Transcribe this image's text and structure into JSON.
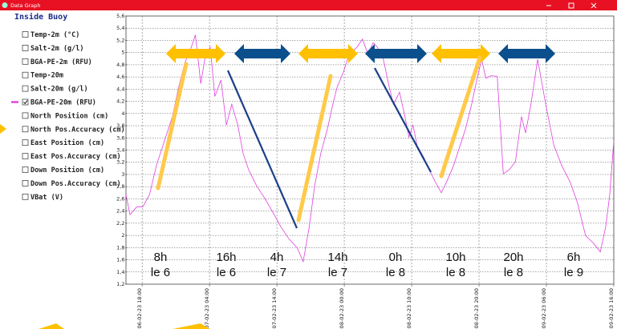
{
  "window": {
    "title": "Data Graph"
  },
  "sidebar": {
    "title": "Inside Buoy",
    "items": [
      {
        "label": "Temp-2m (°C)",
        "checked": false
      },
      {
        "label": "Salt-2m (g/l)",
        "checked": false
      },
      {
        "label": "BGA-PE-2m (RFU)",
        "checked": false
      },
      {
        "label": "Temp-20m",
        "checked": false
      },
      {
        "label": "Salt-20m (g/l)",
        "checked": false
      },
      {
        "label": "BGA-PE-20m (RFU)",
        "checked": true
      },
      {
        "label": "North Position (cm)",
        "checked": false
      },
      {
        "label": "North Pos.Accuracy (cm)",
        "checked": false
      },
      {
        "label": "East Position (cm)",
        "checked": false
      },
      {
        "label": "East Pos.Accuracy (cm)",
        "checked": false
      },
      {
        "label": "Down Position (cm)",
        "checked": false
      },
      {
        "label": "Down Pos.Accuracy (cm)",
        "checked": false
      },
      {
        "label": "VBat (V)",
        "checked": false
      }
    ]
  },
  "chart_data": {
    "type": "line",
    "grid": true,
    "xlim": [
      -2.4,
      70
    ],
    "ylim": [
      1.2,
      5.6
    ],
    "xticks": [
      {
        "value": 0,
        "label": "06-02-23 18:00"
      },
      {
        "value": 10,
        "label": "07-02-23 04:00"
      },
      {
        "value": 20,
        "label": "07-02-23 14:00"
      },
      {
        "value": 30,
        "label": "08-02-23 00:00"
      },
      {
        "value": 40,
        "label": "08-02-23 10:00"
      },
      {
        "value": 50,
        "label": "08-02-23 20:00"
      },
      {
        "value": 60,
        "label": "09-02-23 06:00"
      },
      {
        "value": 70,
        "label": "09-02-23 16:00"
      }
    ],
    "yticks": [
      {
        "value": 1.2,
        "label": "1,2"
      },
      {
        "value": 1.4,
        "label": "1,4"
      },
      {
        "value": 1.6,
        "label": "1,6"
      },
      {
        "value": 1.8,
        "label": "1,8"
      },
      {
        "value": 2.0,
        "label": "2"
      },
      {
        "value": 2.2,
        "label": "2,2"
      },
      {
        "value": 2.4,
        "label": "2,4"
      },
      {
        "value": 2.6,
        "label": "2,6"
      },
      {
        "value": 2.8,
        "label": "2,8"
      },
      {
        "value": 3.0,
        "label": "3"
      },
      {
        "value": 3.2,
        "label": "3,2"
      },
      {
        "value": 3.4,
        "label": "3,4"
      },
      {
        "value": 3.6,
        "label": "3,6"
      },
      {
        "value": 3.8,
        "label": "3,8"
      },
      {
        "value": 4.0,
        "label": "4"
      },
      {
        "value": 4.2,
        "label": "4,2"
      },
      {
        "value": 4.4,
        "label": "4,4"
      },
      {
        "value": 4.6,
        "label": "4,6"
      },
      {
        "value": 4.8,
        "label": "4,8"
      },
      {
        "value": 5.0,
        "label": "5"
      },
      {
        "value": 5.2,
        "label": "5,2"
      },
      {
        "value": 5.4,
        "label": "5,4"
      },
      {
        "value": 5.6,
        "label": "5,6"
      }
    ],
    "series": [
      {
        "color": "#e040e0",
        "x": [
          -2.4,
          -1.8,
          -0.8,
          0.1,
          1.1,
          2.1,
          3.3,
          4.5,
          5.4,
          6.3,
          7.3,
          7.9,
          8.7,
          9.3,
          10.1,
          10.8,
          11.7,
          12.5,
          13.3,
          14.2,
          15.0,
          15.8,
          17.0,
          18.2,
          19.4,
          20.6,
          21.8,
          23.0,
          23.9,
          24.8,
          25.6,
          26.5,
          27.5,
          28.3,
          28.9,
          29.9,
          30.7,
          31.9,
          32.7,
          33.5,
          34.3,
          34.9,
          35.8,
          36.7,
          37.3,
          38.2,
          39.0,
          39.6,
          40.2,
          40.8,
          41.8,
          42.6,
          43.5,
          44.4,
          45.2,
          46.2,
          47.0,
          48.0,
          48.9,
          49.8,
          50.4,
          51.0,
          51.8,
          52.7,
          53.6,
          54.5,
          55.4,
          56.3,
          56.9,
          57.7,
          58.7,
          59.9,
          61.1,
          62.3,
          63.5,
          64.6,
          65.8,
          67.0,
          68.0,
          68.8,
          69.4,
          70.0
        ],
        "values": [
          2.67,
          2.34,
          2.47,
          2.47,
          2.67,
          3.14,
          3.55,
          3.95,
          4.42,
          4.82,
          5.09,
          5.29,
          4.49,
          4.89,
          5.09,
          4.28,
          4.55,
          3.81,
          4.15,
          3.81,
          3.34,
          3.08,
          2.81,
          2.61,
          2.38,
          2.14,
          1.94,
          1.8,
          1.57,
          2.14,
          2.81,
          3.34,
          3.75,
          4.15,
          4.42,
          4.69,
          4.96,
          5.09,
          5.22,
          4.98,
          5.16,
          5.09,
          4.89,
          4.42,
          4.15,
          4.35,
          3.95,
          3.61,
          3.81,
          3.48,
          3.28,
          3.08,
          2.88,
          2.7,
          2.88,
          3.14,
          3.41,
          3.75,
          4.15,
          4.62,
          4.89,
          4.58,
          4.62,
          4.61,
          3.01,
          3.08,
          3.21,
          3.95,
          3.68,
          4.15,
          4.89,
          4.15,
          3.48,
          3.14,
          2.88,
          2.54,
          2.0,
          1.87,
          1.73,
          2.14,
          2.67,
          3.55
        ]
      }
    ],
    "annotations": [
      {
        "time": "8h",
        "day": "le 6"
      },
      {
        "time": "16h",
        "day": "le 6"
      },
      {
        "time": "4h",
        "day": "le 7"
      },
      {
        "time": "14h",
        "day": "le 7"
      },
      {
        "time": "0h",
        "day": "le 8"
      },
      {
        "time": "10h",
        "day": "le 8"
      },
      {
        "time": "20h",
        "day": "le 8"
      },
      {
        "time": "6h",
        "day": "le 9"
      }
    ]
  }
}
